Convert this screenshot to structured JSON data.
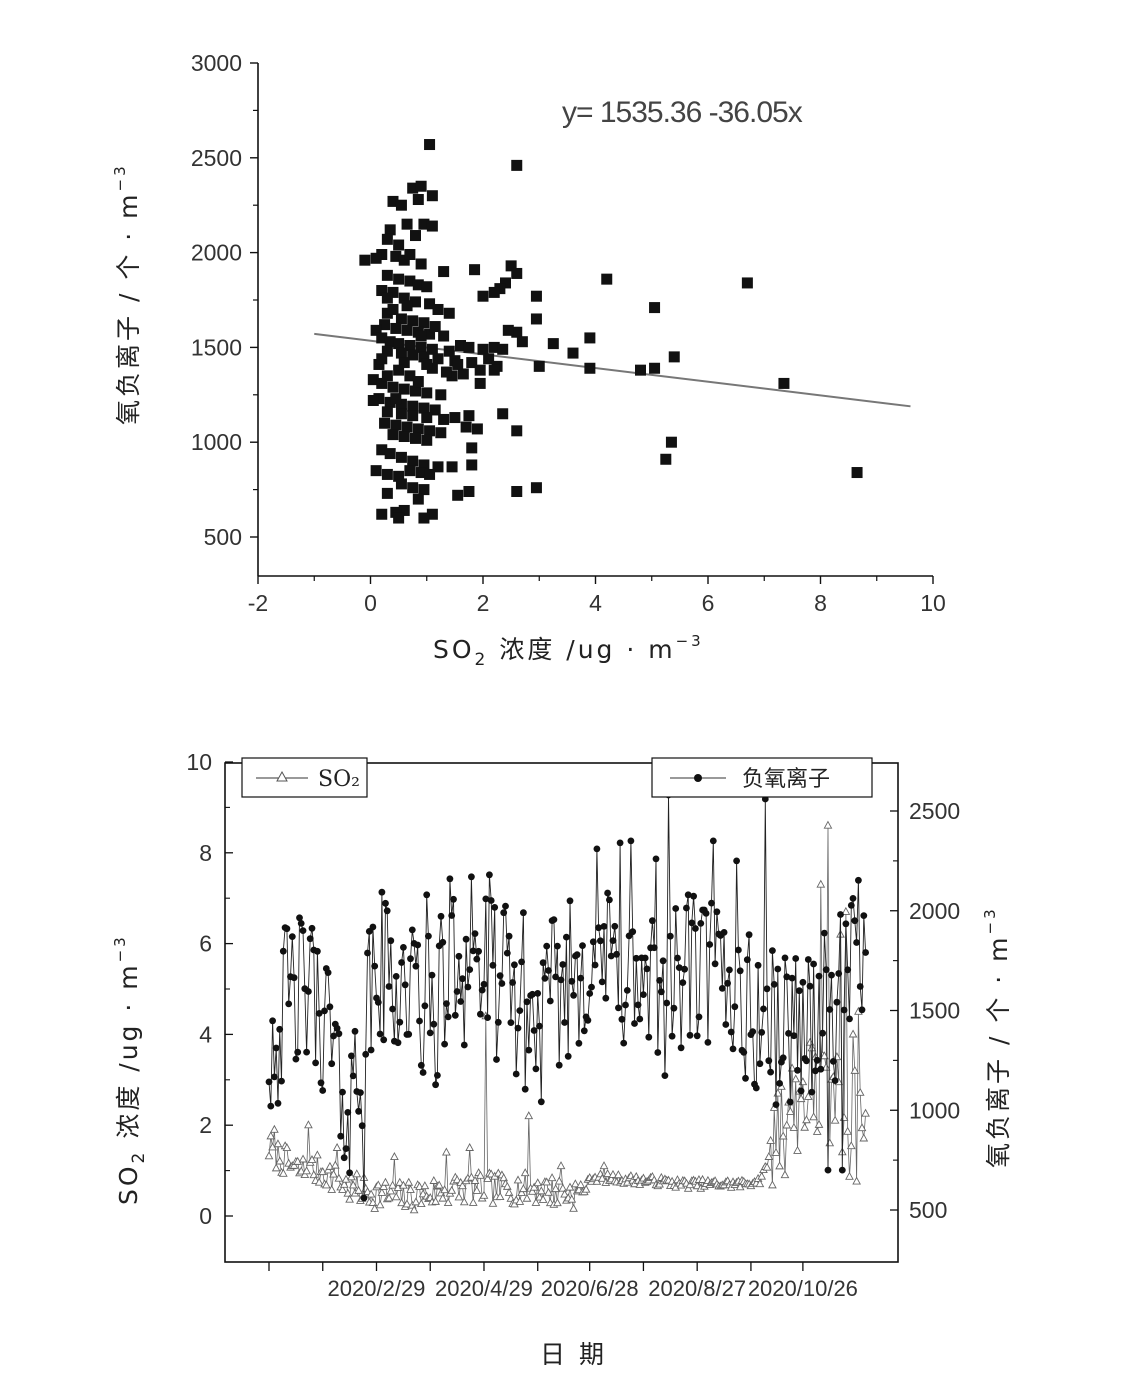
{
  "chart_data": [
    {
      "type": "scatter",
      "title": "",
      "xlabel": "SO",
      "xlabel_sub": "2",
      "xlabel_rest": " 浓度 /ug · m",
      "xlabel_sup": "−3",
      "ylabel": "氧负离子 / 个 · m",
      "ylabel_sup": "−3",
      "xlim": [
        -2,
        10
      ],
      "ylim": [
        300,
        3100
      ],
      "xticks": [
        "-2",
        "0",
        "2",
        "4",
        "6",
        "8",
        "10"
      ],
      "xtick_values": [
        -2,
        0,
        2,
        4,
        6,
        8,
        10
      ],
      "yticks": [
        "500",
        "1000",
        "1500",
        "2000",
        "2500",
        "3000"
      ],
      "ytick_values": [
        500,
        1000,
        1500,
        2000,
        2500,
        3000
      ],
      "equation": "y= 1535.36 -36.05x",
      "fit": {
        "intercept": 1535.36,
        "slope": -36.05,
        "x_range": [
          -1,
          9.6
        ]
      },
      "points_note": "approximate readings",
      "points": [
        [
          1.05,
          2570
        ],
        [
          2.6,
          2460
        ],
        [
          0.75,
          2340
        ],
        [
          0.9,
          2350
        ],
        [
          0.85,
          2280
        ],
        [
          0.4,
          2270
        ],
        [
          0.55,
          2250
        ],
        [
          1.1,
          2300
        ],
        [
          0.65,
          2150
        ],
        [
          0.95,
          2150
        ],
        [
          1.1,
          2140
        ],
        [
          0.35,
          2120
        ],
        [
          0.3,
          2070
        ],
        [
          0.8,
          2090
        ],
        [
          0.5,
          2040
        ],
        [
          0.2,
          1990
        ],
        [
          -0.1,
          1960
        ],
        [
          0.1,
          1970
        ],
        [
          0.45,
          1980
        ],
        [
          0.6,
          1960
        ],
        [
          0.7,
          1990
        ],
        [
          0.9,
          1940
        ],
        [
          1.3,
          1900
        ],
        [
          1.85,
          1910
        ],
        [
          2.5,
          1930
        ],
        [
          2.6,
          1890
        ],
        [
          4.2,
          1860
        ],
        [
          6.7,
          1840
        ],
        [
          2.4,
          1840
        ],
        [
          2.3,
          1810
        ],
        [
          2.2,
          1790
        ],
        [
          2.0,
          1770
        ],
        [
          2.95,
          1770
        ],
        [
          5.05,
          1710
        ],
        [
          0.3,
          1880
        ],
        [
          0.5,
          1860
        ],
        [
          0.7,
          1850
        ],
        [
          0.85,
          1830
        ],
        [
          1.0,
          1820
        ],
        [
          0.2,
          1800
        ],
        [
          0.4,
          1790
        ],
        [
          0.6,
          1760
        ],
        [
          0.8,
          1740
        ],
        [
          1.05,
          1730
        ],
        [
          1.2,
          1700
        ],
        [
          1.4,
          1680
        ],
        [
          0.3,
          1680
        ],
        [
          0.55,
          1650
        ],
        [
          0.75,
          1640
        ],
        [
          0.95,
          1630
        ],
        [
          0.25,
          1620
        ],
        [
          0.45,
          1600
        ],
        [
          0.65,
          1590
        ],
        [
          0.85,
          1580
        ],
        [
          1.05,
          1570
        ],
        [
          1.3,
          1560
        ],
        [
          0.1,
          1590
        ],
        [
          0.2,
          1550
        ],
        [
          0.35,
          1530
        ],
        [
          0.5,
          1520
        ],
        [
          0.7,
          1510
        ],
        [
          0.9,
          1500
        ],
        [
          1.1,
          1490
        ],
        [
          0.3,
          1480
        ],
        [
          0.55,
          1470
        ],
        [
          0.75,
          1460
        ],
        [
          0.95,
          1450
        ],
        [
          1.2,
          1440
        ],
        [
          1.5,
          1430
        ],
        [
          1.6,
          1510
        ],
        [
          1.75,
          1500
        ],
        [
          2.0,
          1490
        ],
        [
          2.2,
          1500
        ],
        [
          2.35,
          1490
        ],
        [
          2.6,
          1580
        ],
        [
          2.7,
          1530
        ],
        [
          2.95,
          1650
        ],
        [
          3.25,
          1520
        ],
        [
          3.6,
          1470
        ],
        [
          3.9,
          1550
        ],
        [
          2.45,
          1590
        ],
        [
          2.1,
          1440
        ],
        [
          2.25,
          1400
        ],
        [
          1.8,
          1420
        ],
        [
          1.95,
          1380
        ],
        [
          1.65,
          1360
        ],
        [
          1.45,
          1350
        ],
        [
          3.0,
          1400
        ],
        [
          3.9,
          1390
        ],
        [
          4.8,
          1380
        ],
        [
          5.05,
          1390
        ],
        [
          5.4,
          1450
        ],
        [
          7.35,
          1310
        ],
        [
          5.35,
          1000
        ],
        [
          5.25,
          910
        ],
        [
          8.65,
          840
        ],
        [
          0.05,
          1330
        ],
        [
          0.2,
          1310
        ],
        [
          0.4,
          1290
        ],
        [
          0.6,
          1280
        ],
        [
          0.8,
          1270
        ],
        [
          1.0,
          1260
        ],
        [
          1.25,
          1250
        ],
        [
          0.15,
          1230
        ],
        [
          0.35,
          1210
        ],
        [
          0.55,
          1200
        ],
        [
          0.75,
          1190
        ],
        [
          0.95,
          1180
        ],
        [
          1.15,
          1170
        ],
        [
          0.3,
          1160
        ],
        [
          0.55,
          1150
        ],
        [
          0.75,
          1140
        ],
        [
          1.0,
          1130
        ],
        [
          1.3,
          1120
        ],
        [
          1.5,
          1130
        ],
        [
          1.75,
          1140
        ],
        [
          2.35,
          1150
        ],
        [
          1.95,
          1310
        ],
        [
          2.2,
          1380
        ],
        [
          0.05,
          1220
        ],
        [
          0.25,
          1100
        ],
        [
          0.45,
          1090
        ],
        [
          0.65,
          1080
        ],
        [
          0.85,
          1070
        ],
        [
          1.05,
          1060
        ],
        [
          1.25,
          1050
        ],
        [
          0.4,
          1040
        ],
        [
          0.6,
          1030
        ],
        [
          0.8,
          1020
        ],
        [
          1.0,
          1010
        ],
        [
          1.7,
          1080
        ],
        [
          1.9,
          1070
        ],
        [
          2.6,
          1060
        ],
        [
          1.8,
          970
        ],
        [
          0.2,
          960
        ],
        [
          0.35,
          940
        ],
        [
          0.55,
          920
        ],
        [
          0.75,
          900
        ],
        [
          0.95,
          880
        ],
        [
          1.2,
          870
        ],
        [
          1.45,
          870
        ],
        [
          1.8,
          880
        ],
        [
          0.1,
          850
        ],
        [
          0.3,
          830
        ],
        [
          0.5,
          820
        ],
        [
          0.7,
          850
        ],
        [
          0.9,
          840
        ],
        [
          1.05,
          830
        ],
        [
          0.55,
          780
        ],
        [
          0.75,
          760
        ],
        [
          0.95,
          750
        ],
        [
          1.75,
          740
        ],
        [
          2.6,
          740
        ],
        [
          2.95,
          760
        ],
        [
          1.55,
          720
        ],
        [
          0.3,
          730
        ],
        [
          0.85,
          700
        ],
        [
          0.6,
          640
        ],
        [
          1.1,
          620
        ],
        [
          0.45,
          630
        ],
        [
          0.2,
          620
        ],
        [
          0.5,
          600
        ],
        [
          0.95,
          600
        ],
        [
          1.35,
          1370
        ],
        [
          1.55,
          1410
        ],
        [
          0.15,
          1410
        ],
        [
          0.9,
          1560
        ],
        [
          1.15,
          1610
        ],
        [
          0.6,
          1420
        ],
        [
          0.2,
          1440
        ],
        [
          0.4,
          1700
        ],
        [
          0.65,
          1720
        ],
        [
          0.3,
          1760
        ],
        [
          1.4,
          1480
        ],
        [
          1.1,
          1390
        ],
        [
          0.7,
          1350
        ],
        [
          0.5,
          1380
        ],
        [
          0.85,
          1320
        ],
        [
          1.0,
          1410
        ],
        [
          0.3,
          1350
        ],
        [
          0.45,
          1230
        ]
      ]
    },
    {
      "type": "line",
      "title": "",
      "xlabel": "日 期",
      "ylabel_left": "SO",
      "ylabel_left_sub": "2",
      "ylabel_left_rest": " 浓度 /ug · m",
      "ylabel_left_sup": "−3",
      "ylabel_right": "氧负离子 / 个 · m",
      "ylabel_right_sup": "−3",
      "ylim_left": [
        -1,
        10
      ],
      "ylim_right": [
        270,
        2780
      ],
      "yticks_left": [
        "0",
        "2",
        "4",
        "6",
        "8",
        "10"
      ],
      "ytick_values_left": [
        0,
        2,
        4,
        6,
        8,
        10
      ],
      "yticks_right": [
        "500",
        "1000",
        "1500",
        "2000",
        "2500"
      ],
      "ytick_values_right": [
        500,
        1000,
        1500,
        2000,
        2500
      ],
      "xticks": [
        "2020/2/29",
        "2020/4/29",
        "2020/6/28",
        "2020/8/27",
        "2020/10/26"
      ],
      "xtick_days": [
        60,
        120,
        179,
        239,
        298
      ],
      "minor_xtick_days": [
        0,
        30,
        90,
        150,
        209,
        269
      ],
      "xlim_days": [
        -24,
        340
      ],
      "x_start": "2020/1/1",
      "legend": [
        {
          "name": "SO₂",
          "marker": "triangle",
          "position": "top-left"
        },
        {
          "name": "负氧离子",
          "marker": "circle",
          "position": "top-right"
        }
      ],
      "series": [
        {
          "name": "SO2",
          "axis": "left",
          "anchors": [
            [
              0,
              1.5
            ],
            [
              15,
              1.0
            ],
            [
              30,
              1.0
            ],
            [
              45,
              0.6
            ],
            [
              60,
              0.5
            ],
            [
              75,
              0.4
            ],
            [
              90,
              0.5
            ],
            [
              105,
              0.6
            ],
            [
              120,
              0.6
            ],
            [
              135,
              0.6
            ],
            [
              150,
              0.6
            ],
            [
              165,
              0.5
            ],
            [
              175,
              0.5
            ],
            [
              180,
              0.85
            ],
            [
              200,
              0.8
            ],
            [
              220,
              0.75
            ],
            [
              230,
              0.7
            ],
            [
              245,
              0.7
            ],
            [
              265,
              0.7
            ],
            [
              275,
              0.8
            ],
            [
              285,
              2.0
            ],
            [
              300,
              2.8
            ],
            [
              315,
              2.5
            ],
            [
              325,
              2.0
            ]
          ],
          "spikes": [
            [
              3,
              1.9
            ],
            [
              22,
              2.0
            ],
            [
              38,
              1.5
            ],
            [
              70,
              1.3
            ],
            [
              99,
              1.4
            ],
            [
              112,
              1.5
            ],
            [
              121,
              4.4
            ],
            [
              145,
              2.2
            ],
            [
              163,
              1.1
            ],
            [
              187,
              1.1
            ],
            [
              284,
              2.7
            ],
            [
              290,
              2.5
            ],
            [
              305,
              3.5
            ],
            [
              308,
              7.3
            ],
            [
              312,
              8.6
            ],
            [
              317,
              3.5
            ],
            [
              319,
              6.2
            ],
            [
              322,
              6.7
            ],
            [
              326,
              4.0
            ],
            [
              329,
              4.5
            ]
          ]
        },
        {
          "name": "负氧离子",
          "axis": "right",
          "anchors": [
            [
              0,
              1350
            ],
            [
              15,
              1600
            ],
            [
              30,
              1500
            ],
            [
              45,
              1000
            ],
            [
              60,
              1700
            ],
            [
              75,
              1650
            ],
            [
              90,
              1450
            ],
            [
              105,
              1750
            ],
            [
              120,
              1700
            ],
            [
              135,
              1600
            ],
            [
              150,
              1400
            ],
            [
              165,
              1650
            ],
            [
              180,
              1800
            ],
            [
              195,
              1700
            ],
            [
              210,
              1550
            ],
            [
              225,
              1600
            ],
            [
              240,
              1700
            ],
            [
              255,
              1650
            ],
            [
              270,
              1450
            ],
            [
              285,
              1400
            ],
            [
              300,
              1450
            ],
            [
              315,
              1500
            ],
            [
              330,
              1750
            ]
          ],
          "spikes": [
            [
              10,
              1910
            ],
            [
              23,
              1860
            ],
            [
              40,
              870
            ],
            [
              53,
              560
            ],
            [
              66,
              2000
            ],
            [
              88,
              2080
            ],
            [
              101,
              2160
            ],
            [
              113,
              2170
            ],
            [
              123,
              2180
            ],
            [
              131,
              1990
            ],
            [
              142,
              1990
            ],
            [
              183,
              2310
            ],
            [
              196,
              2340
            ],
            [
              202,
              2350
            ],
            [
              216,
              2260
            ],
            [
              223,
              2580
            ],
            [
              234,
              2080
            ],
            [
              248,
              2350
            ],
            [
              261,
              2250
            ],
            [
              277,
              2560
            ],
            [
              295,
              1200
            ],
            [
              312,
              700
            ],
            [
              320,
              700
            ],
            [
              327,
              1950
            ],
            [
              336,
              2090
            ]
          ]
        }
      ]
    }
  ]
}
